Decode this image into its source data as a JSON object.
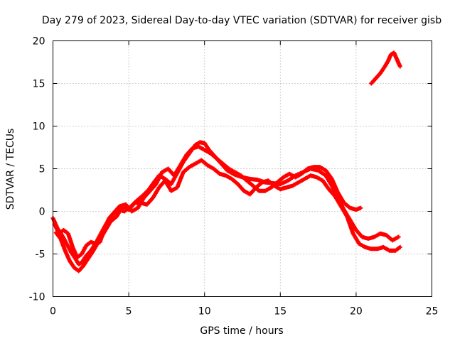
{
  "chart_data": {
    "type": "scatter",
    "title": "Day 279 of 2023, Sidereal Day-to-day VTEC variation (SDTVAR) for receiver gisb",
    "xlabel": "GPS time / hours",
    "ylabel": "SDTVAR / TECUs",
    "xlim": [
      0,
      25
    ],
    "ylim": [
      -10,
      20
    ],
    "xticks": [
      0,
      5,
      10,
      15,
      20,
      25
    ],
    "yticks": [
      -10,
      -5,
      0,
      5,
      10,
      15,
      20
    ],
    "xtick_labels": [
      "0",
      "5",
      "10",
      "15",
      "20",
      "25"
    ],
    "ytick_labels": [
      "-10",
      "-5",
      "0",
      "5",
      "10",
      "15",
      "20"
    ],
    "grid": true,
    "legend": "none",
    "marker": "+",
    "color": "#ff0000",
    "series": [
      {
        "name": "track-a",
        "x": [
          0.0,
          0.3,
          0.6,
          0.9,
          1.2,
          1.5,
          1.7,
          1.9,
          2.2,
          2.5,
          2.8,
          3.1,
          3.5,
          3.9,
          4.3,
          4.7,
          5.1,
          5.5,
          5.9,
          6.3,
          6.7,
          7.0,
          7.4,
          7.8,
          8.2,
          8.6,
          9.0,
          9.4,
          9.7,
          10.0,
          10.3,
          10.7,
          11.1,
          11.5,
          12.0,
          12.5,
          13.0,
          13.5,
          14.0,
          14.5,
          15.0,
          15.5,
          16.0,
          16.5,
          17.0,
          17.5,
          18.0,
          18.4,
          18.8,
          19.2,
          19.6,
          20.0,
          20.4,
          20.8,
          21.2,
          21.6,
          22.0,
          22.4,
          22.8
        ],
        "y": [
          -0.8,
          -2.0,
          -2.8,
          -3.8,
          -4.8,
          -5.6,
          -6.2,
          -6.0,
          -5.2,
          -4.6,
          -3.8,
          -2.8,
          -1.5,
          -0.5,
          0.2,
          0.0,
          0.5,
          1.2,
          1.8,
          2.5,
          3.5,
          4.2,
          3.8,
          3.2,
          4.5,
          5.8,
          6.8,
          7.8,
          8.1,
          8.0,
          7.2,
          6.4,
          5.6,
          4.8,
          4.3,
          4.0,
          3.8,
          3.7,
          3.4,
          3.3,
          3.2,
          3.6,
          4.2,
          4.6,
          5.0,
          4.8,
          4.2,
          3.0,
          1.5,
          0.2,
          -1.0,
          -2.2,
          -3.0,
          -3.2,
          -3.0,
          -2.6,
          -2.8,
          -3.4,
          -3.0
        ]
      },
      {
        "name": "track-b",
        "x": [
          0.2,
          0.5,
          0.8,
          1.1,
          1.4,
          1.7,
          2.0,
          2.3,
          2.6,
          3.0,
          3.4,
          3.8,
          4.2,
          4.6,
          5.0,
          5.4,
          5.8,
          6.2,
          6.6,
          7.0,
          7.4,
          7.8,
          8.2,
          8.6,
          9.0,
          9.4,
          9.8,
          10.2,
          10.6,
          11.0,
          11.4,
          11.8,
          12.2,
          12.6,
          13.0,
          13.4,
          13.8,
          14.2,
          14.6,
          15.0,
          15.4,
          15.8,
          16.2,
          16.6,
          17.0,
          17.4,
          17.8,
          18.2,
          18.6,
          19.0,
          19.4,
          19.8,
          20.2,
          20.6,
          21.0,
          21.4,
          21.8,
          22.2,
          22.6,
          22.9
        ],
        "y": [
          -2.5,
          -3.2,
          -4.6,
          -5.8,
          -6.6,
          -7.0,
          -6.4,
          -5.6,
          -4.8,
          -3.6,
          -2.4,
          -1.2,
          -0.6,
          0.6,
          0.2,
          1.0,
          1.0,
          0.8,
          1.6,
          2.8,
          3.6,
          2.4,
          2.8,
          4.6,
          5.2,
          5.6,
          6.0,
          5.4,
          5.0,
          4.4,
          4.2,
          3.8,
          3.2,
          2.4,
          2.0,
          2.8,
          3.4,
          3.6,
          3.0,
          2.6,
          2.8,
          3.0,
          3.4,
          3.8,
          4.2,
          4.0,
          3.6,
          2.6,
          1.8,
          0.6,
          -0.6,
          -2.6,
          -3.8,
          -4.2,
          -4.4,
          -4.4,
          -4.2,
          -4.6,
          -4.6,
          -4.2
        ]
      },
      {
        "name": "track-c",
        "x": [
          0.1,
          0.4,
          0.7,
          1.0,
          1.3,
          1.6,
          1.9,
          2.2,
          2.5,
          2.8,
          3.1,
          3.4,
          3.7,
          4.0,
          4.4,
          4.8,
          5.2,
          5.6,
          6.0,
          6.4,
          6.8,
          7.2,
          7.6,
          8.0,
          8.4,
          8.8,
          9.2,
          9.6,
          10.0,
          10.4,
          10.8,
          11.2,
          11.6,
          12.0,
          12.4,
          12.8,
          13.2,
          13.6,
          14.0,
          14.4,
          14.8,
          15.2,
          15.6,
          16.0,
          16.4,
          16.8,
          17.2,
          17.6,
          18.0,
          18.4,
          18.8,
          19.2,
          19.6,
          20.0,
          20.3
        ],
        "y": [
          -1.5,
          -2.6,
          -2.2,
          -2.6,
          -4.2,
          -5.4,
          -5.0,
          -4.0,
          -3.6,
          -3.8,
          -3.6,
          -2.0,
          -0.8,
          -0.2,
          0.6,
          0.8,
          0.0,
          0.4,
          1.6,
          2.4,
          3.2,
          4.6,
          5.0,
          4.2,
          5.4,
          6.6,
          7.4,
          7.6,
          7.2,
          6.8,
          6.2,
          5.6,
          5.0,
          4.6,
          4.2,
          3.6,
          3.0,
          2.4,
          2.4,
          2.8,
          3.4,
          4.0,
          4.4,
          4.0,
          4.4,
          5.0,
          5.2,
          5.2,
          4.8,
          3.8,
          2.2,
          1.0,
          0.4,
          0.2,
          0.4
        ]
      },
      {
        "name": "track-d",
        "x": [
          21.0,
          21.3,
          21.6,
          21.9,
          22.1,
          22.3,
          22.5,
          22.7,
          22.9
        ],
        "y": [
          15.0,
          15.6,
          16.2,
          17.0,
          17.6,
          18.4,
          18.6,
          17.8,
          17.0
        ]
      }
    ]
  }
}
